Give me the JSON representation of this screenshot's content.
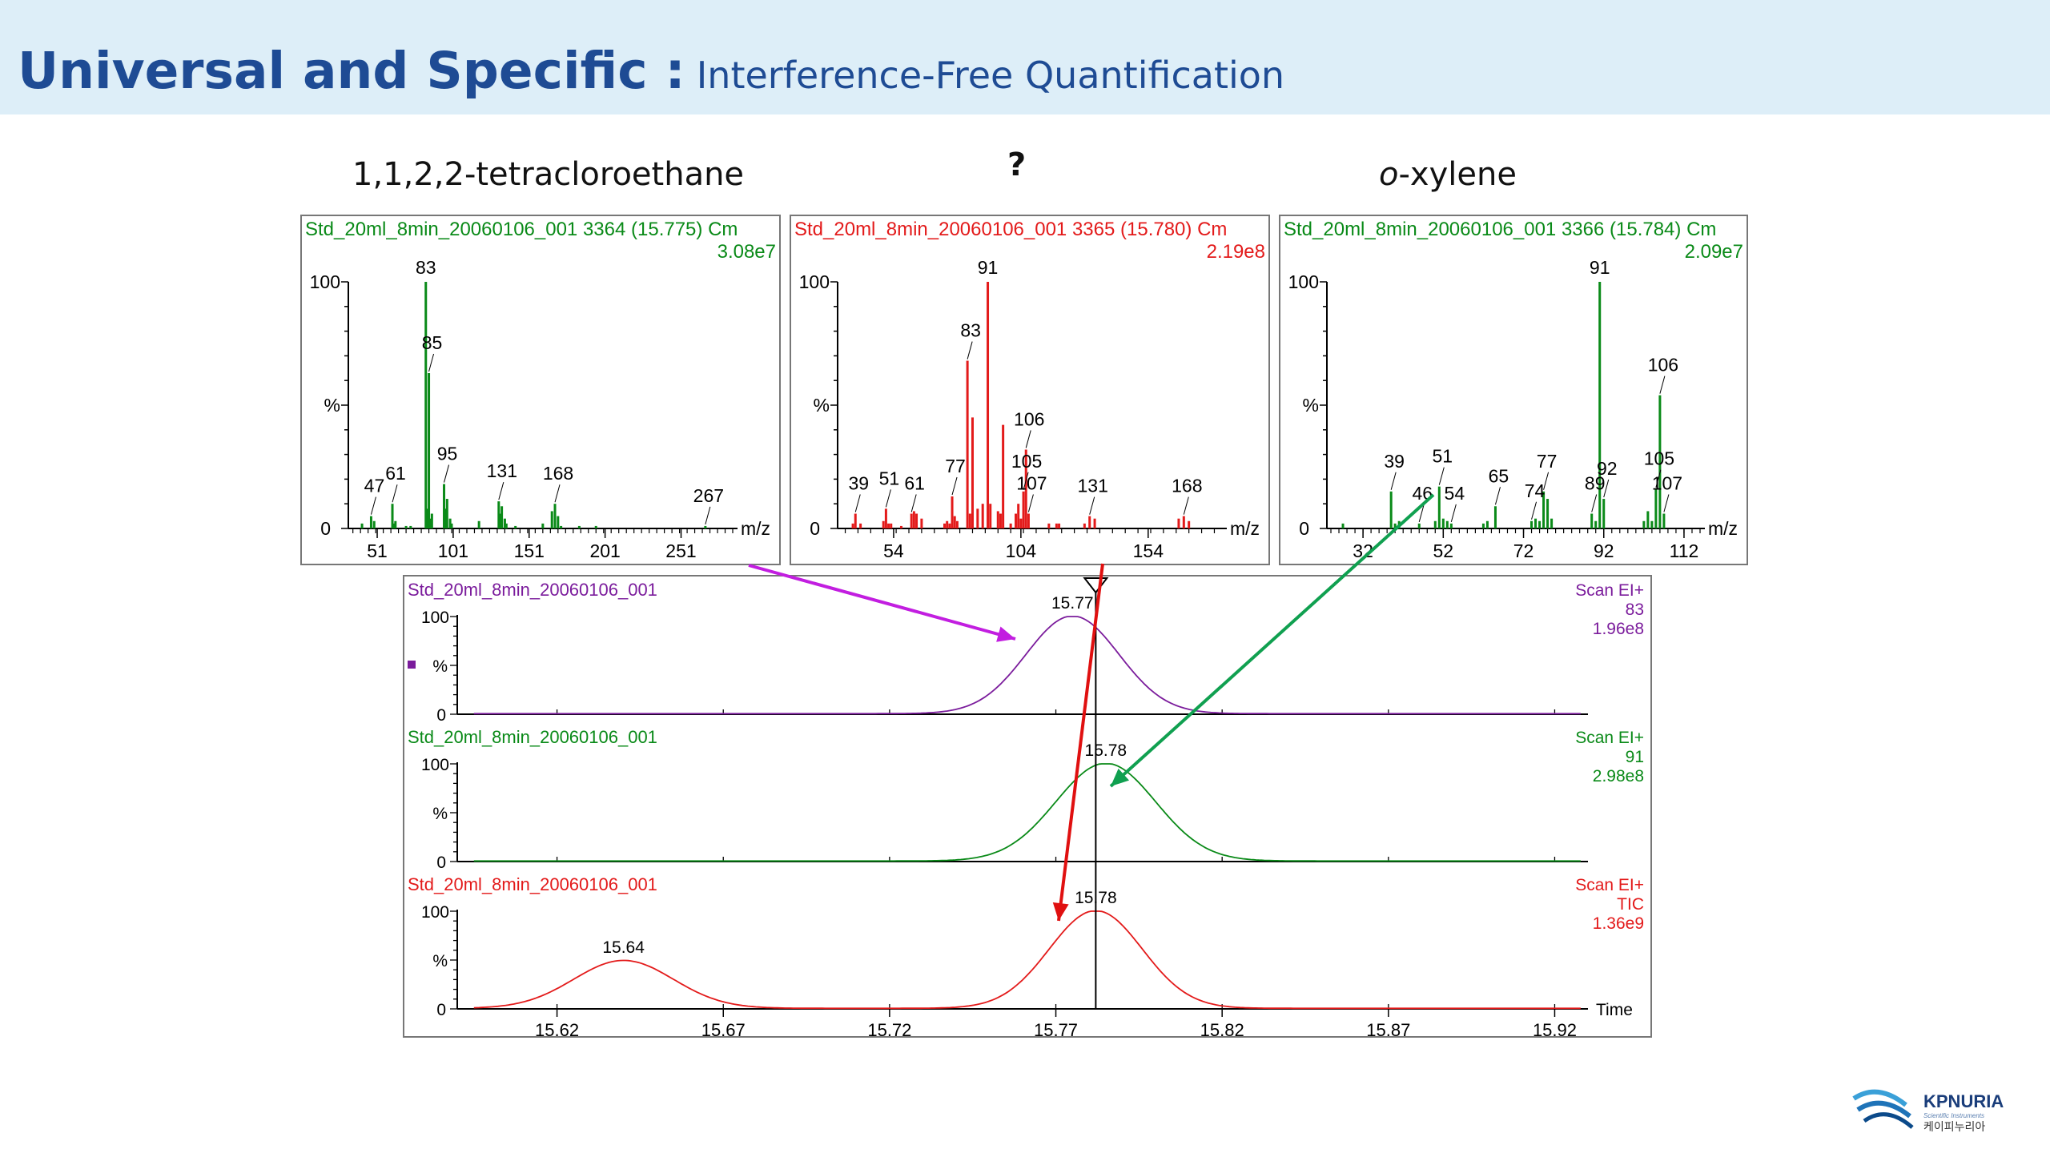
{
  "slide": {
    "title_main": "Universal and Specific :",
    "title_sub": "Interference-Free Quantification",
    "caption_left": "1,1,2,2-tetracloroethane",
    "caption_mid": "?",
    "caption_right_italic": "o",
    "caption_right_rest": "-xylene",
    "logo_text": "KPNURIA",
    "logo_tagline": "Scientific Instruments",
    "logo_korean": "케이피누리아"
  },
  "colors": {
    "banner": "#ddeef8",
    "title": "#1e4b94",
    "green": "#0a8a18",
    "red": "#e31a1a",
    "purple": "#7b1c9c",
    "arrow_purple": "#c21ee0",
    "arrow_green": "#10a050",
    "arrow_red": "#e01010"
  },
  "chart_data": [
    {
      "type": "bar",
      "name": "spectrum_left",
      "header": "Std_20ml_8min_20060106_001 3364 (15.775) Cm",
      "intensity": "3.08e7",
      "color": "green",
      "xlabel": "m/z",
      "xlim": [
        32,
        285
      ],
      "ylim": [
        0,
        100
      ],
      "x_ticks": [
        51,
        101,
        151,
        201,
        251
      ],
      "y_tick_labels": [
        "100",
        "%",
        "0"
      ],
      "peaks": [
        [
          41,
          2
        ],
        [
          47,
          5
        ],
        [
          49,
          3
        ],
        [
          61,
          10
        ],
        [
          62,
          2
        ],
        [
          63,
          3
        ],
        [
          70,
          1
        ],
        [
          73,
          1
        ],
        [
          83,
          100
        ],
        [
          84,
          8
        ],
        [
          85,
          63
        ],
        [
          86,
          4
        ],
        [
          87,
          6
        ],
        [
          95,
          18
        ],
        [
          96,
          8
        ],
        [
          97,
          12
        ],
        [
          99,
          4
        ],
        [
          100,
          2
        ],
        [
          118,
          3
        ],
        [
          131,
          11
        ],
        [
          132,
          6
        ],
        [
          133,
          9
        ],
        [
          135,
          4
        ],
        [
          136,
          2
        ],
        [
          142,
          1
        ],
        [
          160,
          2
        ],
        [
          166,
          7
        ],
        [
          168,
          10
        ],
        [
          170,
          5
        ],
        [
          172,
          1
        ],
        [
          184,
          1
        ],
        [
          195,
          1
        ],
        [
          267,
          1
        ]
      ],
      "labels": [
        {
          "mz": 83,
          "text": "83"
        },
        {
          "mz": 85,
          "text": "85"
        },
        {
          "mz": 95,
          "text": "95"
        },
        {
          "mz": 61,
          "text": "61"
        },
        {
          "mz": 47,
          "text": "47"
        },
        {
          "mz": 131,
          "text": "131"
        },
        {
          "mz": 168,
          "text": "168"
        },
        {
          "mz": 267,
          "text": "267"
        }
      ]
    },
    {
      "type": "bar",
      "name": "spectrum_middle",
      "header": "Std_20ml_8min_20060106_001 3365 (15.780) Cm",
      "intensity": "2.19e8",
      "color": "red",
      "xlabel": "m/z",
      "xlim": [
        32,
        183
      ],
      "ylim": [
        0,
        100
      ],
      "x_ticks": [
        54,
        104,
        154
      ],
      "y_tick_labels": [
        "100",
        "%",
        "0"
      ],
      "peaks": [
        [
          38,
          2
        ],
        [
          39,
          6
        ],
        [
          41,
          2
        ],
        [
          50,
          3
        ],
        [
          51,
          8
        ],
        [
          52,
          2
        ],
        [
          53,
          2
        ],
        [
          57,
          1
        ],
        [
          61,
          6
        ],
        [
          62,
          7
        ],
        [
          63,
          6
        ],
        [
          65,
          4
        ],
        [
          74,
          2
        ],
        [
          75,
          3
        ],
        [
          76,
          2
        ],
        [
          77,
          13
        ],
        [
          78,
          5
        ],
        [
          79,
          3
        ],
        [
          83,
          68
        ],
        [
          84,
          6
        ],
        [
          85,
          45
        ],
        [
          87,
          8
        ],
        [
          89,
          10
        ],
        [
          91,
          100
        ],
        [
          92,
          10
        ],
        [
          95,
          7
        ],
        [
          96,
          6
        ],
        [
          97,
          42
        ],
        [
          100,
          2
        ],
        [
          102,
          6
        ],
        [
          103,
          10
        ],
        [
          104,
          4
        ],
        [
          105,
          15
        ],
        [
          106,
          32
        ],
        [
          107,
          6
        ],
        [
          115,
          2
        ],
        [
          118,
          2
        ],
        [
          119,
          2
        ],
        [
          129,
          2
        ],
        [
          131,
          5
        ],
        [
          133,
          4
        ],
        [
          166,
          4
        ],
        [
          168,
          5
        ],
        [
          170,
          3
        ]
      ],
      "labels": [
        {
          "mz": 91,
          "text": "91"
        },
        {
          "mz": 83,
          "text": "83"
        },
        {
          "mz": 106,
          "text": "106"
        },
        {
          "mz": 105,
          "text": "105"
        },
        {
          "mz": 107,
          "text": "107"
        },
        {
          "mz": 77,
          "text": "77"
        },
        {
          "mz": 39,
          "text": "39"
        },
        {
          "mz": 51,
          "text": "51"
        },
        {
          "mz": 61,
          "text": "61"
        },
        {
          "mz": 131,
          "text": "131"
        },
        {
          "mz": 168,
          "text": "168"
        }
      ]
    },
    {
      "type": "bar",
      "name": "spectrum_right",
      "header": "Std_20ml_8min_20060106_001 3366 (15.784) Cm",
      "intensity": "2.09e7",
      "color": "green",
      "xlabel": "m/z",
      "xlim": [
        23,
        116
      ],
      "ylim": [
        0,
        100
      ],
      "x_ticks": [
        32,
        52,
        72,
        92,
        112
      ],
      "y_tick_labels": [
        "100",
        "%",
        "0"
      ],
      "peaks": [
        [
          27,
          2
        ],
        [
          39,
          15
        ],
        [
          40,
          2
        ],
        [
          41,
          3
        ],
        [
          46,
          2
        ],
        [
          50,
          3
        ],
        [
          51,
          17
        ],
        [
          52,
          4
        ],
        [
          53,
          3
        ],
        [
          54,
          2
        ],
        [
          62,
          2
        ],
        [
          63,
          3
        ],
        [
          65,
          9
        ],
        [
          74,
          3
        ],
        [
          75,
          4
        ],
        [
          76,
          3
        ],
        [
          77,
          15
        ],
        [
          78,
          12
        ],
        [
          79,
          4
        ],
        [
          89,
          6
        ],
        [
          90,
          3
        ],
        [
          91,
          100
        ],
        [
          92,
          12
        ],
        [
          102,
          3
        ],
        [
          103,
          7
        ],
        [
          104,
          3
        ],
        [
          105,
          16
        ],
        [
          106,
          54
        ],
        [
          107,
          6
        ]
      ],
      "labels": [
        {
          "mz": 91,
          "text": "91"
        },
        {
          "mz": 106,
          "text": "106"
        },
        {
          "mz": 105,
          "text": "105"
        },
        {
          "mz": 107,
          "text": "107"
        },
        {
          "mz": 92,
          "text": "92"
        },
        {
          "mz": 89,
          "text": "89"
        },
        {
          "mz": 77,
          "text": "77"
        },
        {
          "mz": 74,
          "text": "74"
        },
        {
          "mz": 65,
          "text": "65"
        },
        {
          "mz": 54,
          "text": "54"
        },
        {
          "mz": 51,
          "text": "51"
        },
        {
          "mz": 46,
          "text": "46"
        },
        {
          "mz": 39,
          "text": "39"
        }
      ]
    },
    {
      "type": "line",
      "name": "chromatograms",
      "xlabel": "Time",
      "xlim": [
        15.59,
        15.93
      ],
      "x_ticks": [
        15.62,
        15.67,
        15.72,
        15.77,
        15.82,
        15.87,
        15.92
      ],
      "ylim": [
        0,
        100
      ],
      "cursor_time": 15.782,
      "series": [
        {
          "header": "Std_20ml_8min_20060106_001",
          "scan": "Scan EI+",
          "ion": "83",
          "intensity": "1.96e8",
          "color": "purple",
          "peaks": [
            {
              "rt": 15.775,
              "height": 100,
              "width": 0.014,
              "label": "15.77"
            }
          ]
        },
        {
          "header": "Std_20ml_8min_20060106_001",
          "scan": "Scan EI+",
          "ion": "91",
          "intensity": "2.98e8",
          "color": "green",
          "peaks": [
            {
              "rt": 15.785,
              "height": 100,
              "width": 0.015,
              "label": "15.78"
            }
          ]
        },
        {
          "header": "Std_20ml_8min_20060106_001",
          "scan": "Scan EI+",
          "ion": "TIC",
          "intensity": "1.36e9",
          "color": "red",
          "peaks": [
            {
              "rt": 15.64,
              "height": 49,
              "width": 0.015,
              "label": "15.64"
            },
            {
              "rt": 15.782,
              "height": 100,
              "width": 0.014,
              "label": "15.78"
            }
          ]
        }
      ]
    }
  ]
}
